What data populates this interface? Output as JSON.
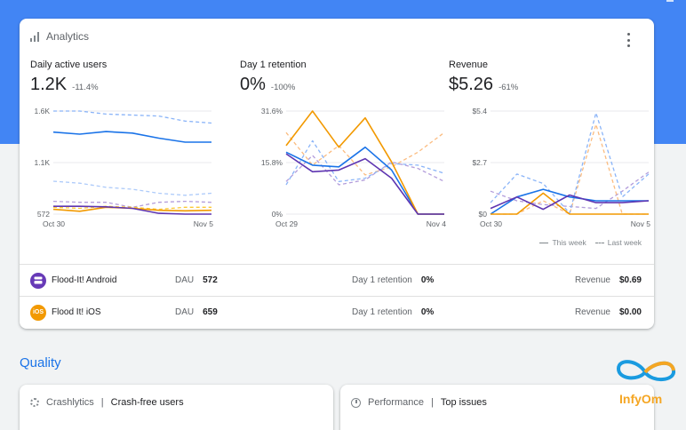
{
  "analytics": {
    "title": "Analytics",
    "metrics": [
      {
        "label": "Daily active users",
        "value": "1.2K",
        "delta": "-11.4%"
      },
      {
        "label": "Day 1 retention",
        "value": "0%",
        "delta": "-100%"
      },
      {
        "label": "Revenue",
        "value": "$5.26",
        "delta": "-61%"
      }
    ],
    "legend": {
      "this_week": "This week",
      "last_week": "Last week"
    },
    "apps": [
      {
        "name": "Flood-It! Android",
        "icon": "android-app-icon",
        "color": "#673ab7",
        "dau_label": "DAU",
        "dau": "572",
        "ret_label": "Day 1 retention",
        "ret": "0%",
        "rev_label": "Revenue",
        "rev": "$0.69"
      },
      {
        "name": "Flood It! iOS",
        "icon": "ios-app-icon",
        "icon_text": "iOS",
        "color": "#f29900",
        "dau_label": "DAU",
        "dau": "659",
        "ret_label": "Day 1 retention",
        "ret": "0%",
        "rev_label": "Revenue",
        "rev": "$0.00"
      }
    ]
  },
  "quality": {
    "title": "Quality",
    "crashlytics": {
      "product": "Crashlytics",
      "sep": "|",
      "metric": "Crash-free users"
    },
    "performance": {
      "product": "Performance",
      "sep": "|",
      "metric": "Top issues"
    }
  },
  "logo": {
    "text": "InfyOm"
  },
  "colors": {
    "blue": "#4285f4",
    "blue_line": "#1a73e8",
    "orange": "#f29900",
    "purple": "#5e35b1",
    "accent": "#1a73e8"
  },
  "chart_data": [
    {
      "type": "line",
      "title": "Daily active users",
      "x_ticks": [
        "Oct 30",
        "Nov 5"
      ],
      "y_ticks": [
        "572",
        "1.1K",
        "1.6K"
      ],
      "ylim": [
        572,
        1600
      ],
      "series": [
        {
          "group": "this_week",
          "color": "#1a73e8",
          "values": [
            1390,
            1370,
            1395,
            1380,
            1330,
            1290,
            1290
          ]
        },
        {
          "group": "this_week",
          "color": "#f29900",
          "values": [
            620,
            600,
            640,
            630,
            610,
            605,
            610
          ]
        },
        {
          "group": "this_week",
          "color": "#5e35b1",
          "values": [
            650,
            650,
            645,
            630,
            580,
            572,
            572
          ]
        },
        {
          "group": "last_week",
          "color": "#8ab4f8",
          "values": [
            1600,
            1600,
            1570,
            1560,
            1550,
            1500,
            1480
          ]
        },
        {
          "group": "last_week",
          "color": "#aecbfa",
          "values": [
            900,
            880,
            840,
            820,
            780,
            760,
            780
          ]
        },
        {
          "group": "last_week",
          "color": "#fcc934",
          "values": [
            640,
            630,
            650,
            640,
            620,
            640,
            640
          ]
        },
        {
          "group": "last_week",
          "color": "#b39ddb",
          "values": [
            700,
            690,
            690,
            640,
            690,
            700,
            690
          ]
        }
      ]
    },
    {
      "type": "line",
      "title": "Day 1 retention",
      "x_ticks": [
        "Oct 29",
        "Nov 4"
      ],
      "y_ticks": [
        "0%",
        "15.8%",
        "31.6%"
      ],
      "ylim": [
        0,
        31.6
      ],
      "series": [
        {
          "group": "this_week",
          "color": "#1a73e8",
          "values": [
            19,
            15,
            14.5,
            20.5,
            13.5,
            0,
            0
          ]
        },
        {
          "group": "this_week",
          "color": "#f29900",
          "values": [
            21,
            31.6,
            20.5,
            29.5,
            16,
            0,
            0
          ]
        },
        {
          "group": "this_week",
          "color": "#5e35b1",
          "values": [
            18.5,
            13,
            13.5,
            17,
            11,
            0,
            0
          ]
        },
        {
          "group": "last_week",
          "color": "#8ab4f8",
          "values": [
            9,
            22.5,
            10,
            11,
            15.5,
            15,
            12.5
          ]
        },
        {
          "group": "last_week",
          "color": "#fbbc80",
          "values": [
            25,
            15,
            21,
            12,
            14.5,
            19,
            25
          ]
        },
        {
          "group": "last_week",
          "color": "#b39ddb",
          "values": [
            10,
            18,
            9,
            10.5,
            16,
            14,
            10
          ]
        }
      ]
    },
    {
      "type": "line",
      "title": "Revenue",
      "x_ticks": [
        "Oct 30",
        "Nov 5"
      ],
      "y_ticks": [
        "$0",
        "$2.7",
        "$5.4"
      ],
      "ylim": [
        0,
        5.4
      ],
      "series": [
        {
          "group": "this_week",
          "color": "#1a73e8",
          "values": [
            0,
            0.9,
            1.3,
            0.9,
            0.7,
            0.7,
            0.7
          ]
        },
        {
          "group": "this_week",
          "color": "#f29900",
          "values": [
            0,
            0,
            1.1,
            0,
            0,
            0,
            0
          ]
        },
        {
          "group": "this_week",
          "color": "#5e35b1",
          "values": [
            0.3,
            0.9,
            0.25,
            1,
            0.6,
            0.6,
            0.7
          ]
        },
        {
          "group": "last_week",
          "color": "#8ab4f8",
          "values": [
            0.6,
            2.1,
            1.6,
            0.05,
            5.3,
            0.9,
            2.1
          ]
        },
        {
          "group": "last_week",
          "color": "#fbbc80",
          "values": [
            0,
            0,
            0.7,
            0,
            4.7,
            0,
            0
          ]
        },
        {
          "group": "last_week",
          "color": "#b39ddb",
          "values": [
            1.2,
            0.7,
            0.5,
            0.4,
            0.3,
            1.2,
            2.2
          ]
        }
      ]
    }
  ]
}
